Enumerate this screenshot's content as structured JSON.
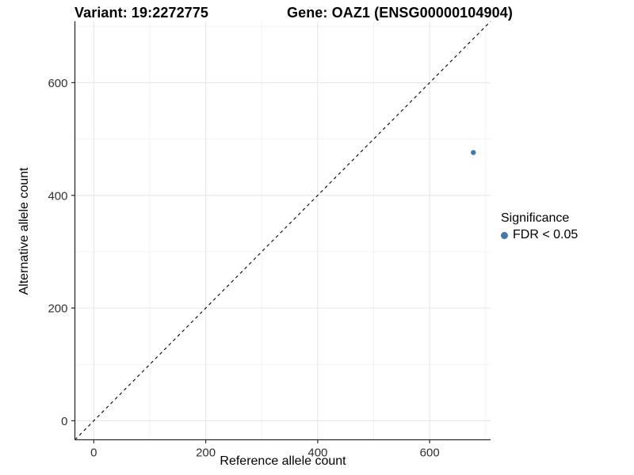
{
  "chart_data": {
    "type": "scatter",
    "titles": {
      "variant": "Variant: 19:2272775",
      "gene": "Gene: OAZ1 (ENSG00000104904)"
    },
    "xlabel": "Reference allele count",
    "ylabel": "Alternative allele count",
    "xlim": [
      -33.75,
      708.75
    ],
    "ylim": [
      -33.75,
      708.75
    ],
    "x_ticks": [
      0,
      200,
      400,
      600
    ],
    "y_ticks": [
      0,
      200,
      400,
      600
    ],
    "x_minor_ticks": [
      100,
      300,
      500,
      700
    ],
    "y_minor_ticks": [
      100,
      300,
      500,
      700
    ],
    "grid": "on",
    "identity_line": {
      "style": "dashed",
      "from": -33.75,
      "to": 708.75,
      "color": "#000000"
    },
    "points": [
      {
        "x": 678,
        "y": 476,
        "series": "FDR < 0.05",
        "color": "#4477aa",
        "radius": 3.2
      }
    ],
    "legend": {
      "position": "right",
      "title": "Significance",
      "entries": [
        {
          "label": "FDR < 0.05",
          "color": "#4477aa"
        }
      ]
    },
    "colors": {
      "axis_line": "#2b2b2b",
      "tick_label": "#303030",
      "grid_major": "#e6e6e6",
      "grid_minor": "#f2f2f2",
      "title_text": "#000000",
      "point": "#4477aa"
    }
  }
}
